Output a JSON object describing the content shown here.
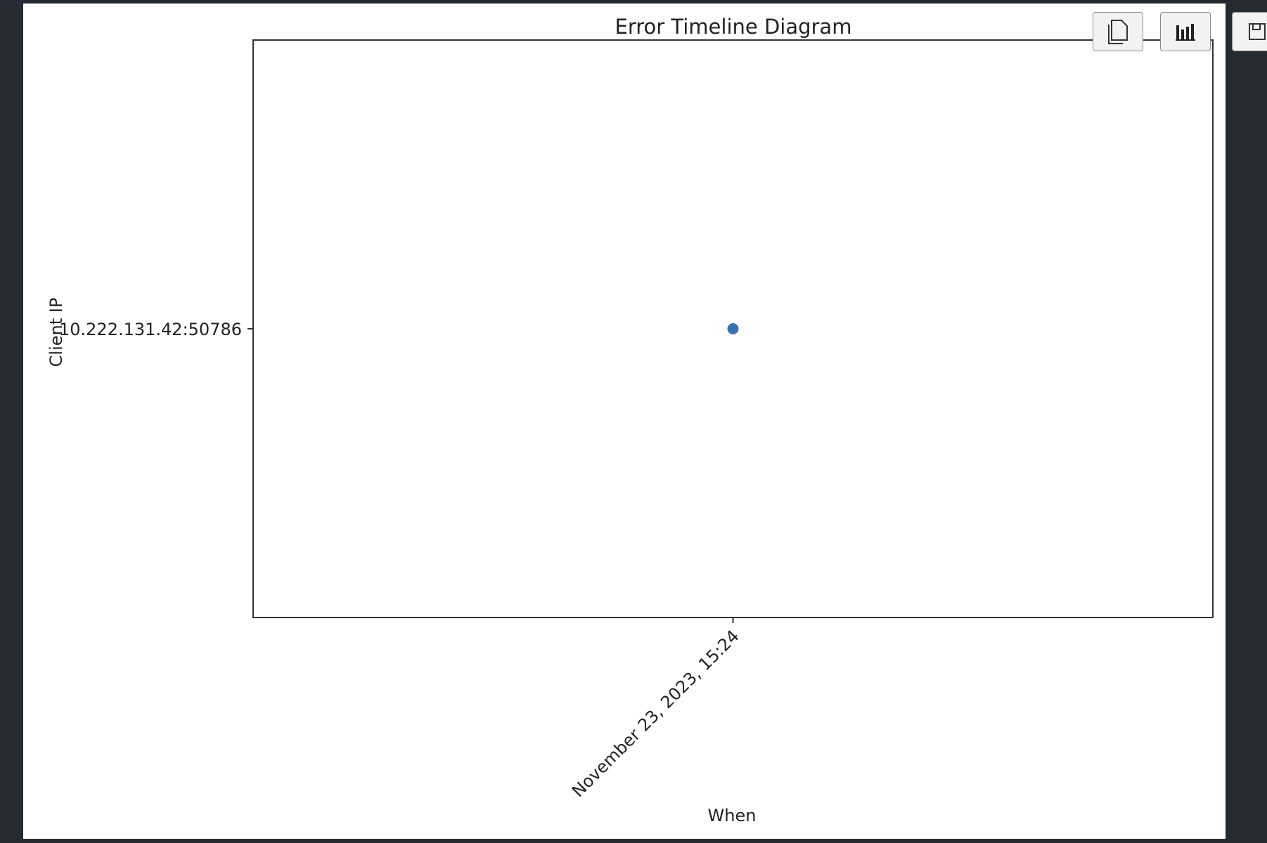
{
  "toolbar": {
    "buttons": [
      {
        "name": "copy-button",
        "icon": "copy-icon"
      },
      {
        "name": "chart-view-button",
        "icon": "bar-chart-icon"
      },
      {
        "name": "save-button",
        "icon": "save-icon"
      }
    ]
  },
  "chart_data": {
    "type": "scatter",
    "title": "Error Timeline Diagram",
    "xlabel": "When",
    "ylabel": "Client IP",
    "x_tick_labels": [
      "November 23, 2023, 15:24"
    ],
    "y_tick_labels": [
      "10.222.131.42:50786"
    ],
    "points": [
      {
        "x": "November 23, 2023, 15:24",
        "y": "10.222.131.42:50786"
      }
    ],
    "marker_color": "#3a72b0",
    "grid": false,
    "legend": false
  }
}
